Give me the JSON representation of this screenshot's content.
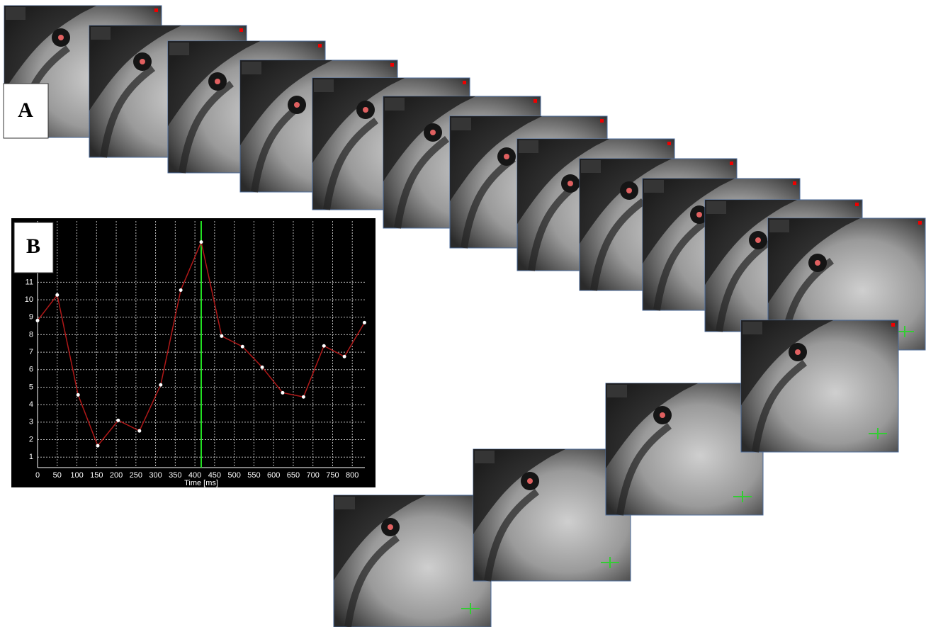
{
  "panel_labels": {
    "a": "A",
    "b": "B"
  },
  "chart_data": {
    "type": "line",
    "x_label": "Time [ms]",
    "x": [
      0,
      50,
      103,
      153,
      205,
      259,
      313,
      364,
      416,
      468,
      521,
      571,
      623,
      676,
      728,
      780,
      831
    ],
    "series": [
      {
        "color": "#b01818",
        "values": [
          8.81,
          10.27,
          4.56,
          1.65,
          3.1,
          2.5,
          5.13,
          10.55,
          13.3,
          7.92,
          7.32,
          6.14,
          4.68,
          4.44,
          7.36,
          6.75,
          8.69
        ]
      }
    ],
    "xlim": [
      0,
      832
    ],
    "xticks": [
      0,
      50,
      100,
      150,
      200,
      250,
      300,
      350,
      400,
      450,
      500,
      550,
      600,
      650,
      700,
      750,
      800
    ],
    "ylim": [
      0.4,
      14.5
    ],
    "yticks": [
      1,
      2,
      3,
      4,
      5,
      6,
      7,
      8,
      9,
      10,
      11
    ],
    "grid": true,
    "cursor_x": 416,
    "cursor_color": "#22e022"
  }
}
